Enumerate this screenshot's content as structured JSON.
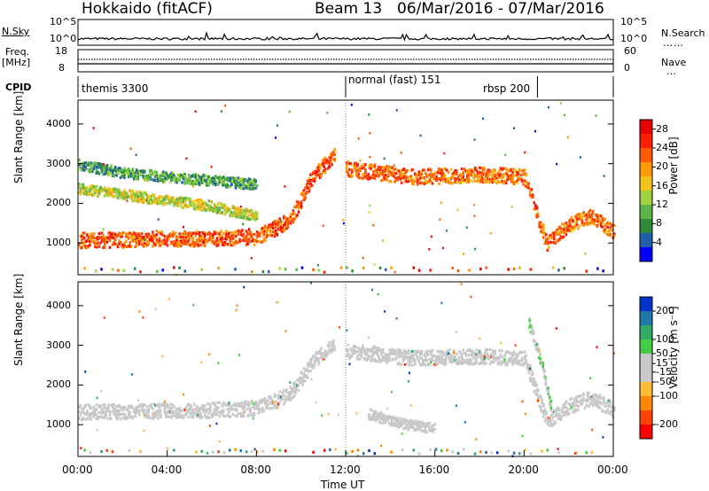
{
  "header": {
    "station": "Hokkaido (fitACF)",
    "beam": "Beam 13",
    "date_range": "06/Mar/2016 - 07/Mar/2016"
  },
  "panels": {
    "nsky": {
      "left_label": "N.Sky",
      "right_label": "N.Search",
      "tick_top": "10^5",
      "tick_bottom": "10^0"
    },
    "freq": {
      "left_label_1": "Freq.",
      "left_label_2": "[MHz]",
      "right_label": "Nave",
      "tick_left_top": "18",
      "tick_left_bottom": "8",
      "tick_right_top": "60",
      "tick_right_bottom": "0"
    },
    "cpid": {
      "label": "CPID",
      "segments": [
        {
          "name": "themis 3300",
          "start": 0,
          "end": 12
        },
        {
          "name": "normal (fast) 151",
          "start": 12,
          "end": 20.6
        },
        {
          "name": "rbsp 200",
          "start": 20.6,
          "end": 24
        }
      ]
    }
  },
  "colors": {
    "power_scale": [
      "#0000ff",
      "#1f5fa8",
      "#2e8b3a",
      "#5cb548",
      "#9fd23c",
      "#f2c318",
      "#ff9a00",
      "#ff5a00",
      "#ff1e00",
      "#e60000"
    ],
    "velocity_scale": [
      "#ff0000",
      "#ff4400",
      "#ff8800",
      "#ffbb33",
      "#c8c8c8",
      "#c8c8c8",
      "#44cc44",
      "#33aa66",
      "#2277aa",
      "#0033cc"
    ],
    "ground_scatter": "#c8c8c8"
  },
  "chart_data": [
    {
      "type": "heatmap",
      "panel": "power",
      "ylabel": "Slant Range [km]",
      "ylim": [
        200,
        4600
      ],
      "yticks": [
        "1000",
        "2000",
        "3000",
        "4000"
      ],
      "xlim": [
        0,
        24
      ],
      "colorbar": {
        "label": "Power [dB]",
        "ticks": [
          "4",
          "8",
          "12",
          "16",
          "20",
          "24",
          "28"
        ],
        "range": [
          0,
          30
        ]
      },
      "bands": [
        {
          "x": [
            0,
            3,
            6,
            8,
            9.5,
            10.5,
            11.5
          ],
          "y": [
            1100,
            1120,
            1150,
            1180,
            1600,
            2700,
            3250
          ],
          "value": 28
        },
        {
          "x": [
            12,
            15,
            18,
            20,
            21,
            22,
            23,
            24
          ],
          "y": [
            2900,
            2700,
            2750,
            2700,
            1000,
            1500,
            1700,
            1300
          ],
          "value": 27
        },
        {
          "x": [
            0,
            2,
            4,
            6,
            8
          ],
          "y": [
            2400,
            2250,
            2100,
            1950,
            1700
          ],
          "value": 19
        },
        {
          "x": [
            0,
            2,
            4,
            6,
            8
          ],
          "y": [
            3000,
            2800,
            2700,
            2600,
            2500
          ],
          "value": 14
        }
      ]
    },
    {
      "type": "heatmap",
      "panel": "velocity",
      "ylabel": "Slant Range [km]",
      "xlabel": "Time UT",
      "ylim": [
        200,
        4600
      ],
      "yticks": [
        "1000",
        "2000",
        "3000",
        "4000"
      ],
      "xlim": [
        0,
        24
      ],
      "xticks": [
        "00:00",
        "04:00",
        "08:00",
        "12:00",
        "16:00",
        "20:00",
        "00:00"
      ],
      "colorbar": {
        "label": "Velocity [m s⁻¹]",
        "ticks": [
          "200",
          "100",
          "50",
          "15",
          "-15",
          "-50",
          "-100",
          "-200"
        ],
        "range": [
          -250,
          250
        ]
      },
      "bands": [
        {
          "x": [
            0,
            3,
            6,
            8,
            9.5,
            10.5,
            11.5
          ],
          "y": [
            1350,
            1370,
            1400,
            1450,
            1800,
            2600,
            3100
          ],
          "value": 0
        },
        {
          "x": [
            12,
            15,
            18,
            20,
            21,
            22,
            23,
            24
          ],
          "y": [
            2900,
            2700,
            2750,
            2700,
            1100,
            1500,
            1700,
            1400
          ],
          "value": 0
        },
        {
          "x": [
            20.2,
            20.8,
            21.2
          ],
          "y": [
            3600,
            2500,
            1400
          ],
          "value": 40
        },
        {
          "x": [
            13,
            14.5,
            16
          ],
          "y": [
            1300,
            1050,
            950
          ],
          "value": 30
        }
      ]
    }
  ]
}
